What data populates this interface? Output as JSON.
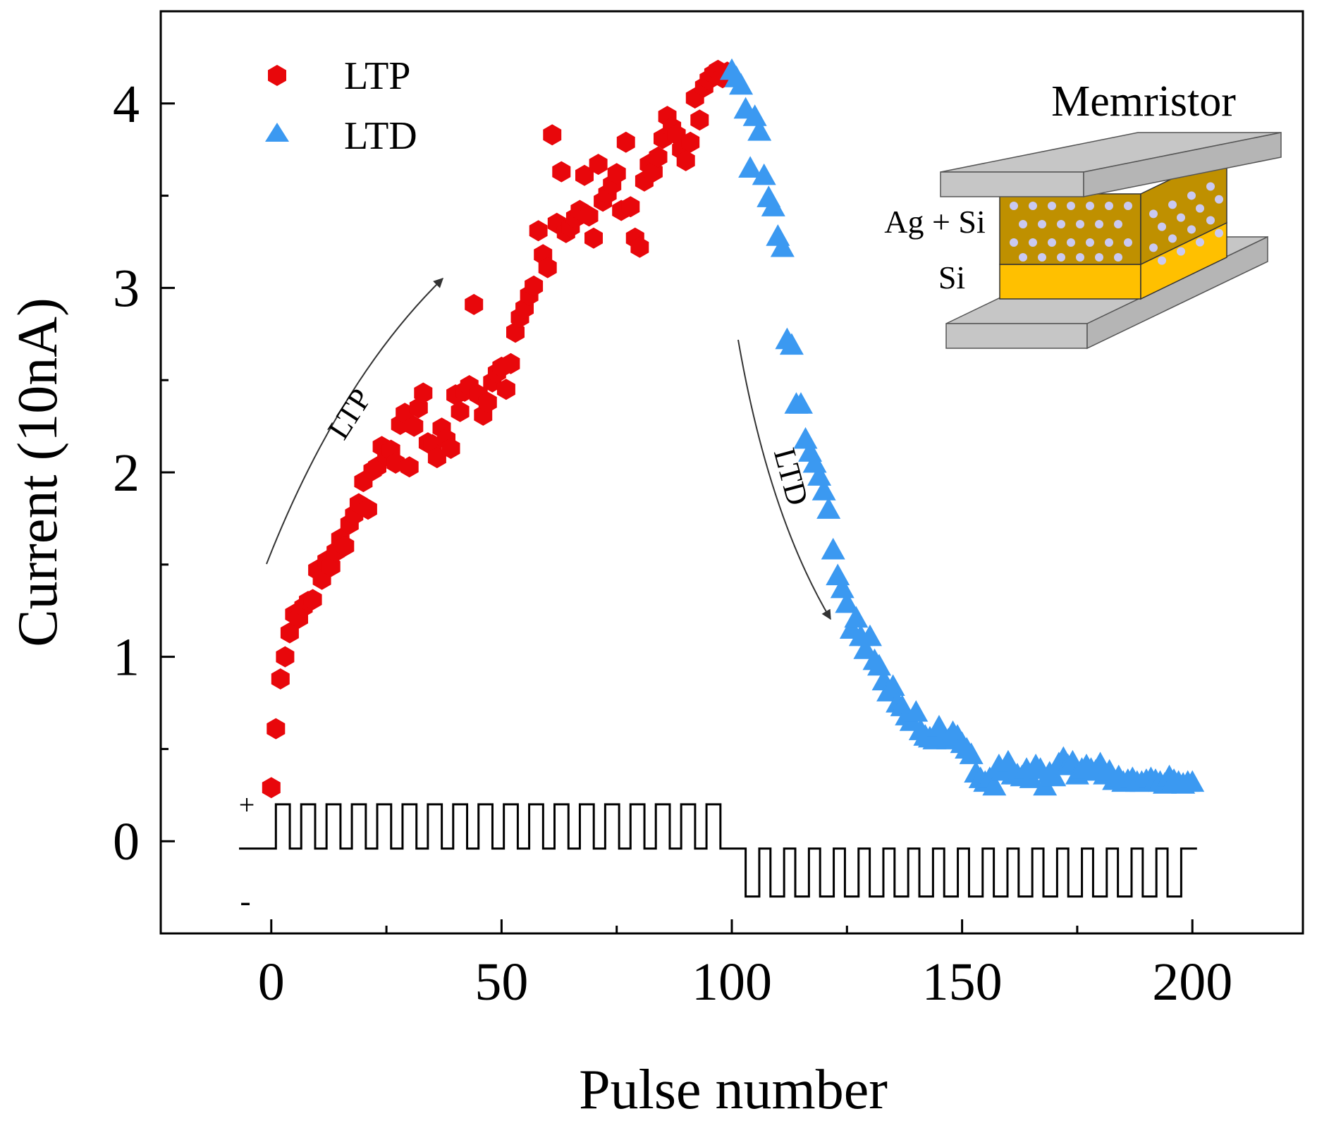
{
  "chart_data": {
    "type": "scatter",
    "title": "",
    "xlabel": "Pulse number",
    "ylabel": "Current (10nA)",
    "xlim": [
      -24,
      224
    ],
    "ylim": [
      -0.5,
      4.5
    ],
    "xticks": [
      0,
      50,
      100,
      150,
      200
    ],
    "xtick_labels": [
      "0",
      "50",
      "100",
      "150",
      "200"
    ],
    "xminor": [
      25,
      75,
      125,
      175
    ],
    "yticks": [
      0,
      1,
      2,
      3,
      4
    ],
    "ytick_labels": [
      "0",
      "1",
      "2",
      "3",
      "4"
    ],
    "yminor": [
      0.5,
      1.5,
      2.5,
      3.5
    ],
    "legend": {
      "placement": "top-left"
    },
    "series": [
      {
        "name": "LTP",
        "marker": "hexagon",
        "color": "#e8070b",
        "x": [
          0,
          1,
          2,
          3,
          4,
          5,
          6,
          7,
          8,
          9,
          10,
          11,
          12,
          13,
          14,
          15,
          16,
          17,
          18,
          19,
          20,
          21,
          22,
          23,
          24,
          25,
          26,
          27,
          28,
          29,
          30,
          31,
          32,
          33,
          34,
          35,
          36,
          37,
          38,
          39,
          40,
          41,
          42,
          43,
          44,
          45,
          46,
          47,
          48,
          49,
          50,
          51,
          52,
          53,
          54,
          55,
          56,
          57,
          58,
          59,
          60,
          61,
          62,
          63,
          64,
          65,
          66,
          67,
          68,
          69,
          70,
          71,
          72,
          73,
          74,
          75,
          76,
          77,
          78,
          79,
          80,
          81,
          82,
          83,
          84,
          85,
          86,
          87,
          88,
          89,
          90,
          91,
          92,
          93,
          94,
          95,
          96,
          97,
          98,
          99
        ],
        "y": [
          0.29,
          0.61,
          0.88,
          1.0,
          1.13,
          1.23,
          1.21,
          1.27,
          1.3,
          1.31,
          1.47,
          1.42,
          1.52,
          1.49,
          1.57,
          1.64,
          1.6,
          1.72,
          1.77,
          1.83,
          1.95,
          1.8,
          2.01,
          2.03,
          2.14,
          2.09,
          2.12,
          2.05,
          2.26,
          2.32,
          2.03,
          2.25,
          2.35,
          2.43,
          2.16,
          2.15,
          2.08,
          2.24,
          2.18,
          2.13,
          2.42,
          2.33,
          2.44,
          2.47,
          2.91,
          2.42,
          2.31,
          2.38,
          2.49,
          2.54,
          2.57,
          2.45,
          2.59,
          2.76,
          2.84,
          2.89,
          2.96,
          3.01,
          3.31,
          3.18,
          3.11,
          3.83,
          3.35,
          3.63,
          3.3,
          3.33,
          3.38,
          3.42,
          3.61,
          3.39,
          3.27,
          3.67,
          3.47,
          3.51,
          3.56,
          3.62,
          3.42,
          3.79,
          3.44,
          3.27,
          3.22,
          3.58,
          3.67,
          3.63,
          3.71,
          3.81,
          3.93,
          3.87,
          3.83,
          3.75,
          3.69,
          3.79,
          4.03,
          3.91,
          4.09,
          4.13,
          4.16,
          4.18,
          4.14,
          4.17
        ]
      },
      {
        "name": "LTD",
        "marker": "triangle",
        "color": "#3b99f1",
        "x": [
          100,
          101,
          102,
          103,
          104,
          105,
          106,
          107,
          108,
          109,
          110,
          111,
          112,
          113,
          114,
          115,
          116,
          117,
          118,
          119,
          120,
          121,
          122,
          123,
          124,
          125,
          126,
          127,
          128,
          129,
          130,
          131,
          132,
          133,
          134,
          135,
          136,
          137,
          138,
          139,
          140,
          141,
          142,
          143,
          144,
          145,
          146,
          147,
          148,
          149,
          150,
          151,
          152,
          153,
          154,
          155,
          156,
          157,
          158,
          159,
          160,
          161,
          162,
          163,
          164,
          165,
          166,
          167,
          168,
          169,
          170,
          171,
          172,
          173,
          174,
          175,
          176,
          177,
          178,
          179,
          180,
          181,
          182,
          183,
          184,
          185,
          186,
          187,
          188,
          189,
          190,
          191,
          192,
          193,
          194,
          195,
          196,
          197,
          198,
          199,
          200
        ],
        "y": [
          4.18,
          4.14,
          4.1,
          3.97,
          3.65,
          3.93,
          3.85,
          3.61,
          3.49,
          3.44,
          3.28,
          3.22,
          2.72,
          2.69,
          2.37,
          2.37,
          2.18,
          2.11,
          2.05,
          1.98,
          1.9,
          1.8,
          1.58,
          1.44,
          1.37,
          1.29,
          1.15,
          1.21,
          1.11,
          1.04,
          1.11,
          0.98,
          0.95,
          0.87,
          0.81,
          0.84,
          0.75,
          0.73,
          0.68,
          0.65,
          0.7,
          0.6,
          0.57,
          0.56,
          0.55,
          0.62,
          0.57,
          0.55,
          0.59,
          0.57,
          0.53,
          0.5,
          0.47,
          0.37,
          0.34,
          0.32,
          0.34,
          0.3,
          0.41,
          0.38,
          0.43,
          0.36,
          0.36,
          0.35,
          0.39,
          0.34,
          0.41,
          0.39,
          0.3,
          0.37,
          0.35,
          0.42,
          0.45,
          0.41,
          0.43,
          0.36,
          0.39,
          0.41,
          0.39,
          0.38,
          0.42,
          0.36,
          0.38,
          0.33,
          0.35,
          0.32,
          0.33,
          0.34,
          0.32,
          0.32,
          0.33,
          0.34,
          0.33,
          0.32,
          0.31,
          0.35,
          0.33,
          0.32,
          0.31,
          0.32,
          0.32
        ]
      }
    ],
    "pulse_waveform": {
      "positive_symbol": "+",
      "negative_symbol": "-",
      "positive_count": 18,
      "negative_count": 18
    },
    "annotations": [
      {
        "name": "ltp-arrow-label",
        "text": "LTP"
      },
      {
        "name": "ltd-arrow-label",
        "text": "LTD"
      }
    ],
    "inset": {
      "title": "Memristor",
      "layer_top_label": "Ag + Si",
      "layer_bottom_label": "Si",
      "colors": {
        "electrode": "#c6c6c6",
        "ag_si_layer": "#bf9000",
        "si_layer": "#ffc000",
        "particle": "#c9c9f2"
      }
    }
  }
}
